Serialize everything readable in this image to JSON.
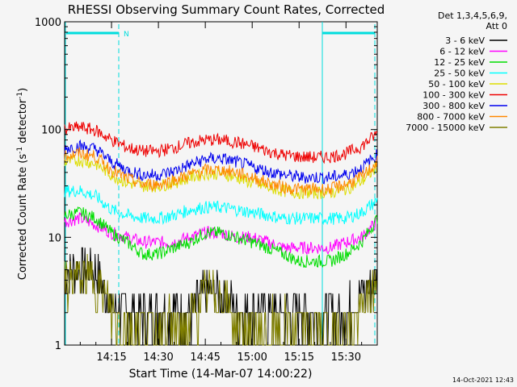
{
  "chart_data": {
    "type": "line",
    "title": "RHESSI Observing Summary Count Rates, Corrected",
    "xlabel": "Start Time (14-Mar-07 14:00:22)",
    "ylabel_main": "Corrected Count Rate (s",
    "ylabel_sup1": "-1",
    "ylabel_mid": " detector",
    "ylabel_sup2": "-1",
    "ylabel_end": ")",
    "y_scale": "log",
    "ylim": [
      1,
      1000
    ],
    "xlim_minutes": [
      0,
      100
    ],
    "x_ticks": [
      {
        "m": 15,
        "label": "14:15"
      },
      {
        "m": 30,
        "label": "14:30"
      },
      {
        "m": 45,
        "label": "14:45"
      },
      {
        "m": 60,
        "label": "15:00"
      },
      {
        "m": 75,
        "label": "15:15"
      },
      {
        "m": 90,
        "label": "15:30"
      }
    ],
    "y_ticks": [
      {
        "v": 1,
        "label": "1"
      },
      {
        "v": 10,
        "label": "10"
      },
      {
        "v": 100,
        "label": "100"
      },
      {
        "v": 1000,
        "label": "1000"
      }
    ],
    "legend_header": [
      "Det 1,3,4,5,6,9,",
      "Att 0"
    ],
    "legend_placement": "right",
    "series": [
      {
        "name": "3 - 6 keV",
        "color": "#000000",
        "x": [
          0,
          5,
          10,
          15,
          20,
          25,
          30,
          35,
          40,
          45,
          50,
          55,
          60,
          65,
          70,
          75,
          80,
          85,
          90,
          95,
          100
        ],
        "values": [
          5,
          5,
          5,
          2,
          2,
          2,
          2,
          2,
          2,
          3,
          3,
          2,
          2,
          2,
          2,
          2,
          2,
          2,
          2,
          3,
          4
        ]
      },
      {
        "name": "6 - 12 keV",
        "color": "#ff00ff",
        "x": [
          0,
          5,
          10,
          15,
          20,
          25,
          30,
          35,
          40,
          45,
          50,
          55,
          60,
          65,
          70,
          75,
          80,
          85,
          90,
          95,
          100
        ],
        "values": [
          14,
          15,
          13,
          11,
          10,
          9,
          9,
          9,
          10,
          11,
          11,
          10,
          10,
          9,
          8,
          8,
          8,
          8,
          9,
          10,
          14
        ]
      },
      {
        "name": "12 - 25 keV",
        "color": "#00dd00",
        "x": [
          0,
          5,
          10,
          15,
          20,
          25,
          30,
          35,
          40,
          45,
          50,
          55,
          60,
          65,
          70,
          75,
          80,
          85,
          90,
          95,
          100
        ],
        "values": [
          16,
          17,
          15,
          11,
          9,
          7,
          7,
          8,
          9,
          11,
          11,
          10,
          9,
          8,
          7,
          6,
          6,
          6,
          7,
          9,
          15
        ]
      },
      {
        "name": "25 - 50 keV",
        "color": "#00ffff",
        "x": [
          0,
          5,
          10,
          15,
          20,
          25,
          30,
          35,
          40,
          45,
          50,
          55,
          60,
          65,
          70,
          75,
          80,
          85,
          90,
          95,
          100
        ],
        "values": [
          27,
          27,
          24,
          18,
          16,
          15,
          15,
          16,
          18,
          19,
          19,
          18,
          17,
          16,
          15,
          15,
          15,
          15,
          15,
          17,
          22
        ]
      },
      {
        "name": "50 - 100 keV",
        "color": "#dddd00",
        "x": [
          0,
          5,
          10,
          15,
          20,
          25,
          30,
          35,
          40,
          45,
          50,
          55,
          60,
          65,
          70,
          75,
          80,
          85,
          90,
          95,
          100
        ],
        "values": [
          50,
          52,
          48,
          38,
          32,
          30,
          30,
          32,
          36,
          39,
          39,
          36,
          32,
          29,
          27,
          26,
          26,
          26,
          28,
          33,
          45
        ]
      },
      {
        "name": "100 - 300 keV",
        "color": "#ee0000",
        "x": [
          0,
          5,
          10,
          15,
          20,
          25,
          30,
          35,
          40,
          45,
          50,
          55,
          60,
          65,
          70,
          75,
          80,
          85,
          90,
          95,
          100
        ],
        "values": [
          100,
          105,
          98,
          80,
          68,
          63,
          63,
          68,
          75,
          80,
          80,
          76,
          70,
          63,
          58,
          56,
          55,
          56,
          60,
          70,
          92
        ]
      },
      {
        "name": "300 - 800 keV",
        "color": "#0000ee",
        "x": [
          0,
          5,
          10,
          15,
          20,
          25,
          30,
          35,
          40,
          45,
          50,
          55,
          60,
          65,
          70,
          75,
          80,
          85,
          90,
          95,
          100
        ],
        "values": [
          67,
          70,
          66,
          50,
          42,
          38,
          38,
          41,
          47,
          53,
          54,
          50,
          45,
          41,
          38,
          36,
          36,
          36,
          38,
          44,
          58
        ]
      },
      {
        "name": "800 - 7000 keV",
        "color": "#ff8800",
        "x": [
          0,
          5,
          10,
          15,
          20,
          25,
          30,
          35,
          40,
          45,
          50,
          55,
          60,
          65,
          70,
          75,
          80,
          85,
          90,
          95,
          100
        ],
        "values": [
          57,
          60,
          56,
          42,
          35,
          31,
          31,
          34,
          38,
          42,
          42,
          40,
          36,
          32,
          29,
          28,
          28,
          28,
          31,
          36,
          50
        ]
      },
      {
        "name": "7000 - 15000 keV",
        "color": "#808000",
        "x": [
          0,
          5,
          10,
          15,
          20,
          25,
          30,
          35,
          40,
          45,
          50,
          55,
          60,
          65,
          70,
          75,
          80,
          85,
          90,
          95,
          100
        ],
        "values": [
          4,
          4,
          4,
          2,
          1.5,
          1.5,
          1.5,
          1.5,
          1.5,
          3,
          3,
          1.5,
          1.5,
          1.5,
          1.5,
          1.5,
          1.5,
          1.5,
          1.5,
          2,
          4
        ]
      }
    ],
    "annotation_N": "N",
    "timestamp": "14-Oct-2021 12:43"
  }
}
